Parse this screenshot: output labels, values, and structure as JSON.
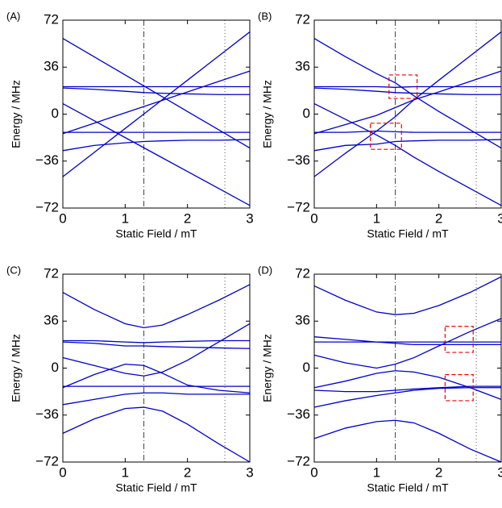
{
  "chart_data": [
    {
      "type": "line",
      "label": "(A)",
      "x_label": "Static Field / mT",
      "y_label": "Energy / MHz",
      "x": [
        0,
        0.5,
        1,
        1.3,
        1.6,
        2,
        2.5,
        3
      ],
      "xlim": [
        0,
        3
      ],
      "ylim": [
        -72,
        72
      ],
      "xticks": [
        0,
        1,
        2,
        3
      ],
      "yticks": [
        {
          "value": -72,
          "label": "−72"
        },
        {
          "value": -36,
          "label": "−36"
        },
        0,
        36,
        72
      ],
      "vlines": [
        {
          "x": 1.3,
          "style": "dashdot"
        },
        {
          "x": 2.6,
          "style": "dotted"
        }
      ],
      "series": [
        {
          "color": "#0000cc",
          "values": [
            58,
            44,
            30,
            21.6,
            13.2,
            2,
            -12,
            -26
          ]
        },
        {
          "color": "#0000cc",
          "values": [
            21,
            21,
            21,
            21,
            21,
            21,
            21,
            21
          ]
        },
        {
          "color": "#0000cc",
          "values": [
            20,
            19,
            17.5,
            16.5,
            16,
            15.5,
            15,
            15
          ]
        },
        {
          "color": "#0000cc",
          "values": [
            8,
            -5,
            -18,
            -25.8,
            -33.6,
            -44,
            -57,
            -70
          ]
        },
        {
          "color": "#0000cc",
          "values": [
            -14,
            -14,
            -14,
            -14,
            -14,
            -14,
            -14,
            -14
          ]
        },
        {
          "color": "#0000cc",
          "values": [
            -15,
            -7,
            1,
            5.8,
            10.6,
            17,
            25,
            33
          ]
        },
        {
          "color": "#0000cc",
          "values": [
            -28,
            -24,
            -22,
            -21,
            -20.5,
            -20,
            -20,
            -19.5
          ]
        },
        {
          "color": "#0000cc",
          "values": [
            -48,
            -29.5,
            -11,
            0.1,
            11.2,
            26,
            44.5,
            63
          ]
        }
      ]
    },
    {
      "type": "line",
      "label": "(B)",
      "x_label": "Static Field / mT",
      "y_label": "Energy / MHz",
      "x": [
        0,
        0.5,
        1,
        1.3,
        1.6,
        2,
        2.5,
        3
      ],
      "xlim": [
        0,
        3
      ],
      "ylim": [
        -72,
        72
      ],
      "xticks": [
        0,
        1,
        2,
        3
      ],
      "yticks": [
        {
          "value": -72,
          "label": "−72"
        },
        {
          "value": -36,
          "label": "−36"
        },
        0,
        36,
        72
      ],
      "vlines": [
        {
          "x": 1.3,
          "style": "dashdot"
        },
        {
          "x": 2.6,
          "style": "dotted"
        }
      ],
      "boxes": [
        {
          "xlim": [
            1.2,
            1.65
          ],
          "ylim": [
            12,
            30
          ]
        },
        {
          "xlim": [
            0.9,
            1.4
          ],
          "ylim": [
            -27,
            -7
          ]
        }
      ],
      "series": [
        {
          "color": "#0000cc",
          "values": [
            58,
            44,
            31,
            24,
            14,
            2,
            -12,
            -26
          ]
        },
        {
          "color": "#0000cc",
          "values": [
            21,
            21,
            21,
            20.5,
            21,
            21,
            21,
            21
          ]
        },
        {
          "color": "#0000cc",
          "values": [
            20,
            19,
            17.5,
            16.5,
            16,
            15.5,
            15,
            15
          ]
        },
        {
          "color": "#0000cc",
          "values": [
            8,
            -4,
            -16,
            -24,
            -33,
            -44,
            -57,
            -70
          ]
        },
        {
          "color": "#0000cc",
          "values": [
            -14,
            -14,
            -13,
            -13.5,
            -14,
            -14,
            -14,
            -14
          ]
        },
        {
          "color": "#0000cc",
          "values": [
            -15,
            -8,
            -1,
            5,
            11,
            17,
            25,
            33
          ]
        },
        {
          "color": "#0000cc",
          "values": [
            -28,
            -24,
            -23,
            -21,
            -20.5,
            -20,
            -20,
            -19.5
          ]
        },
        {
          "color": "#0000cc",
          "values": [
            -48,
            -30,
            -13,
            -2,
            11,
            26,
            44.5,
            63
          ]
        }
      ]
    },
    {
      "type": "line",
      "label": "(C)",
      "x_label": "Static Field / mT",
      "y_label": "Energy / MHz",
      "x": [
        0,
        0.5,
        1,
        1.3,
        1.6,
        2,
        2.5,
        3
      ],
      "xlim": [
        0,
        3
      ],
      "ylim": [
        -72,
        72
      ],
      "xticks": [
        0,
        1,
        2,
        3
      ],
      "yticks": [
        {
          "value": -72,
          "label": "−72"
        },
        {
          "value": -36,
          "label": "−36"
        },
        0,
        36,
        72
      ],
      "vlines": [
        {
          "x": 1.3,
          "style": "dashdot"
        },
        {
          "x": 2.6,
          "style": "dotted"
        }
      ],
      "series": [
        {
          "color": "#0000cc",
          "values": [
            58,
            45,
            34,
            31,
            33,
            41,
            52,
            64
          ]
        },
        {
          "color": "#0000cc",
          "values": [
            21,
            21,
            20,
            19.5,
            20,
            20.5,
            21,
            21
          ]
        },
        {
          "color": "#0000cc",
          "values": [
            20,
            19,
            17,
            17,
            16.5,
            16,
            15.5,
            15
          ]
        },
        {
          "color": "#0000cc",
          "values": [
            8,
            2,
            -4,
            -6,
            -3,
            6,
            20,
            34
          ]
        },
        {
          "color": "#0000cc",
          "values": [
            -14,
            -14,
            -14,
            -14,
            -14,
            -14,
            -14,
            -14
          ]
        },
        {
          "color": "#0000cc",
          "values": [
            -15,
            -5,
            3,
            2,
            -4,
            -13,
            -17,
            -19
          ]
        },
        {
          "color": "#0000cc",
          "values": [
            -28,
            -24,
            -20,
            -19,
            -19,
            -20,
            -20,
            -20
          ]
        },
        {
          "color": "#0000cc",
          "values": [
            -50,
            -39,
            -31,
            -30,
            -33,
            -43,
            -58,
            -72
          ]
        }
      ]
    },
    {
      "type": "line",
      "label": "(D)",
      "x_label": "Static Field / mT",
      "y_label": "Energy / MHz",
      "x": [
        0,
        0.5,
        1,
        1.3,
        1.6,
        2,
        2.5,
        3
      ],
      "xlim": [
        0,
        3
      ],
      "ylim": [
        -72,
        72
      ],
      "xticks": [
        0,
        1,
        2,
        3
      ],
      "yticks": [
        {
          "value": -72,
          "label": "−72"
        },
        {
          "value": -36,
          "label": "−36"
        },
        0,
        36,
        72
      ],
      "vlines": [
        {
          "x": 1.3,
          "style": "dashdot"
        },
        {
          "x": 2.6,
          "style": "dotted"
        }
      ],
      "boxes": [
        {
          "xlim": [
            2.1,
            2.55
          ],
          "ylim": [
            12,
            32
          ]
        },
        {
          "xlim": [
            2.1,
            2.55
          ],
          "ylim": [
            -25,
            -5
          ]
        }
      ],
      "series": [
        {
          "color": "#0000cc",
          "values": [
            63,
            52,
            43,
            41,
            42,
            48,
            58,
            70
          ]
        },
        {
          "color": "#0000cc",
          "values": [
            24,
            22,
            20,
            19,
            18,
            18,
            18,
            18
          ]
        },
        {
          "color": "#0000cc",
          "values": [
            20,
            20,
            20,
            20,
            20,
            20,
            20,
            20
          ]
        },
        {
          "color": "#0000cc",
          "values": [
            10,
            4,
            0,
            3,
            8,
            17,
            28,
            38
          ]
        },
        {
          "color": "#0000cc",
          "values": [
            -15,
            -10,
            -4,
            -2,
            -3,
            -7,
            -15,
            -24
          ]
        },
        {
          "color": "#0000cc",
          "values": [
            -17,
            -18,
            -18,
            -17,
            -16,
            -15,
            -14,
            -14
          ]
        },
        {
          "color": "#0000cc",
          "values": [
            -30,
            -25,
            -21,
            -19,
            -17,
            -15.5,
            -15,
            -15
          ]
        },
        {
          "color": "#0000cc",
          "values": [
            -54,
            -46,
            -41,
            -40,
            -42,
            -50,
            -62,
            -72
          ]
        }
      ]
    }
  ]
}
